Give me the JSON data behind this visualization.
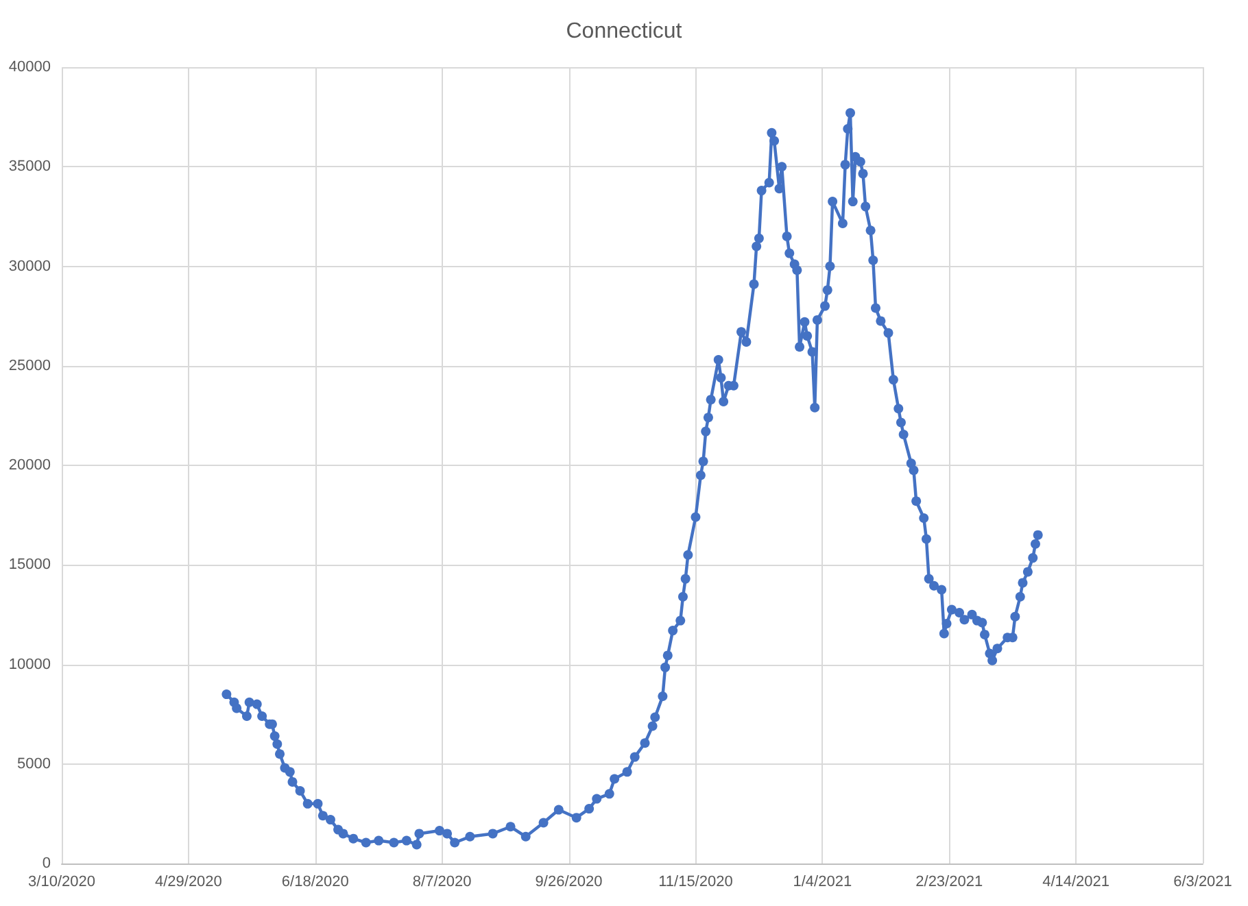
{
  "chart_data": {
    "type": "line",
    "title": "Connecticut",
    "x": [
      "2020-05-14",
      "2020-05-17",
      "2020-05-18",
      "2020-05-22",
      "2020-05-23",
      "2020-05-26",
      "2020-05-28",
      "2020-05-31",
      "2020-06-01",
      "2020-06-02",
      "2020-06-03",
      "2020-06-04",
      "2020-06-06",
      "2020-06-08",
      "2020-06-09",
      "2020-06-12",
      "2020-06-15",
      "2020-06-19",
      "2020-06-21",
      "2020-06-24",
      "2020-06-27",
      "2020-06-29",
      "2020-07-03",
      "2020-07-08",
      "2020-07-13",
      "2020-07-19",
      "2020-07-24",
      "2020-07-28",
      "2020-07-29",
      "2020-08-06",
      "2020-08-09",
      "2020-08-12",
      "2020-08-18",
      "2020-08-27",
      "2020-09-03",
      "2020-09-09",
      "2020-09-16",
      "2020-09-22",
      "2020-09-29",
      "2020-10-04",
      "2020-10-07",
      "2020-10-12",
      "2020-10-14",
      "2020-10-19",
      "2020-10-22",
      "2020-10-26",
      "2020-10-29",
      "2020-10-30",
      "2020-11-02",
      "2020-11-03",
      "2020-11-04",
      "2020-11-06",
      "2020-11-09",
      "2020-11-10",
      "2020-11-11",
      "2020-11-12",
      "2020-11-15",
      "2020-11-17",
      "2020-11-18",
      "2020-11-19",
      "2020-11-20",
      "2020-11-21",
      "2020-11-24",
      "2020-11-25",
      "2020-11-26",
      "2020-11-28",
      "2020-11-30",
      "2020-12-03",
      "2020-12-05",
      "2020-12-08",
      "2020-12-09",
      "2020-12-10",
      "2020-12-11",
      "2020-12-14",
      "2020-12-15",
      "2020-12-16",
      "2020-12-18",
      "2020-12-19",
      "2020-12-21",
      "2020-12-22",
      "2020-12-24",
      "2020-12-25",
      "2020-12-26",
      "2020-12-28",
      "2020-12-29",
      "2020-12-31",
      "2021-01-01",
      "2021-01-02",
      "2021-01-05",
      "2021-01-06",
      "2021-01-07",
      "2021-01-08",
      "2021-01-12",
      "2021-01-13",
      "2021-01-14",
      "2021-01-15",
      "2021-01-16",
      "2021-01-17",
      "2021-01-19",
      "2021-01-20",
      "2021-01-21",
      "2021-01-23",
      "2021-01-24",
      "2021-01-25",
      "2021-01-27",
      "2021-01-30",
      "2021-02-01",
      "2021-02-03",
      "2021-02-04",
      "2021-02-05",
      "2021-02-08",
      "2021-02-09",
      "2021-02-10",
      "2021-02-13",
      "2021-02-14",
      "2021-02-15",
      "2021-02-17",
      "2021-02-20",
      "2021-02-21",
      "2021-02-22",
      "2021-02-24",
      "2021-02-27",
      "2021-03-01",
      "2021-03-04",
      "2021-03-06",
      "2021-03-08",
      "2021-03-09",
      "2021-03-11",
      "2021-03-12",
      "2021-03-14",
      "2021-03-18",
      "2021-03-20",
      "2021-03-21",
      "2021-03-23",
      "2021-03-24",
      "2021-03-26",
      "2021-03-28",
      "2021-03-29",
      "2021-03-30"
    ],
    "series": [
      {
        "color": "#4472c4",
        "values": [
          8500,
          8100,
          7800,
          7400,
          8100,
          8000,
          7400,
          7000,
          7000,
          6400,
          6000,
          5500,
          4800,
          4600,
          4100,
          3650,
          3000,
          3000,
          2400,
          2200,
          1700,
          1500,
          1250,
          1050,
          1150,
          1050,
          1150,
          950,
          1500,
          1650,
          1500,
          1050,
          1350,
          1500,
          1850,
          1350,
          2050,
          2700,
          2300,
          2750,
          3250,
          3500,
          4250,
          4600,
          5350,
          6050,
          6900,
          7350,
          8400,
          9850,
          10450,
          11700,
          12200,
          13400,
          14300,
          15500,
          17400,
          19500,
          20200,
          21700,
          22400,
          23300,
          25300,
          24400,
          23200,
          24000,
          24000,
          26700,
          26200,
          29100,
          31000,
          31400,
          33800,
          34200,
          36700,
          36300,
          33900,
          35000,
          31500,
          30650,
          30100,
          29800,
          25950,
          27200,
          26500,
          25700,
          22900,
          27300,
          28000,
          28800,
          30000,
          33250,
          32150,
          35100,
          36900,
          37700,
          33250,
          35500,
          35250,
          34650,
          33000,
          31800,
          30300,
          27900,
          27250,
          26650,
          24300,
          22850,
          22150,
          21550,
          20100,
          19750,
          18200,
          17350,
          16300,
          14300,
          13950,
          13750,
          11550,
          12050,
          12750,
          12600,
          12250,
          12500,
          12200,
          12100,
          11500,
          10550,
          10200,
          10800,
          11350,
          11350,
          12400,
          13400,
          14100,
          14650,
          15350,
          16050,
          16500
        ]
      }
    ],
    "xlim": [
      "2020-03-10",
      "2021-06-03"
    ],
    "xticks": [
      {
        "value": "2020-03-10",
        "label": "3/10/2020"
      },
      {
        "value": "2020-04-29",
        "label": "4/29/2020"
      },
      {
        "value": "2020-06-18",
        "label": "6/18/2020"
      },
      {
        "value": "2020-08-07",
        "label": "8/7/2020"
      },
      {
        "value": "2020-09-26",
        "label": "9/26/2020"
      },
      {
        "value": "2020-11-15",
        "label": "11/15/2020"
      },
      {
        "value": "2021-01-04",
        "label": "1/4/2021"
      },
      {
        "value": "2021-02-23",
        "label": "2/23/2021"
      },
      {
        "value": "2021-04-14",
        "label": "4/14/2021"
      },
      {
        "value": "2021-06-03",
        "label": "6/3/2021"
      }
    ],
    "ylim": [
      0,
      40000
    ],
    "yticks": [
      0,
      5000,
      10000,
      15000,
      20000,
      25000,
      30000,
      35000,
      40000
    ],
    "grid": true,
    "marker": "circle",
    "line_style": "solid"
  }
}
